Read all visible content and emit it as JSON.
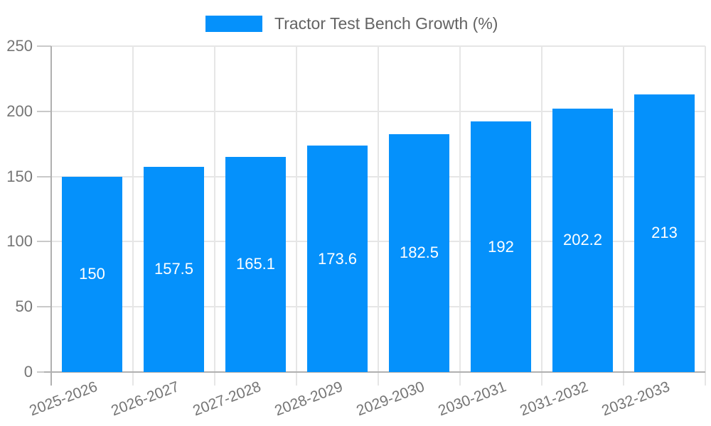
{
  "chart_data": {
    "type": "bar",
    "title": "Tractor Test Bench Growth (%)",
    "legend": {
      "position": "top-center",
      "label": "Tractor Test Bench Growth (%)"
    },
    "categories": [
      "2025-2026",
      "2026-2027",
      "2027-2028",
      "2028-2029",
      "2029-2030",
      "2030-2031",
      "2031-2032",
      "2032-2033"
    ],
    "values": [
      150,
      157.5,
      165.1,
      173.6,
      182.5,
      192,
      202.2,
      213
    ],
    "value_labels": [
      "150",
      "157.5",
      "165.1",
      "173.6",
      "182.5",
      "192",
      "202.2",
      "213"
    ],
    "xlabel": "",
    "ylabel": "",
    "ylim": [
      0,
      250
    ],
    "yticks": [
      0,
      50,
      100,
      150,
      200,
      250
    ],
    "grid": true,
    "colors": {
      "bar": "#0591fb",
      "value_label_text": "#ffffff",
      "gridline": "#e6e6e6",
      "axis_line": "#b0b0b0",
      "tick_mark": "#c9c9c9",
      "axis_text": "#757575",
      "legend_text": "#636363"
    }
  }
}
